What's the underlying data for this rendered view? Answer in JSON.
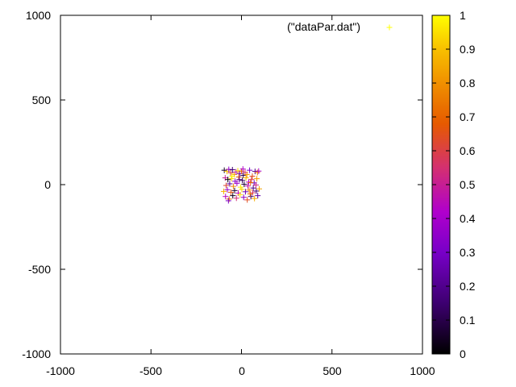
{
  "chart_data": {
    "type": "scatter",
    "title": "",
    "xlabel": "",
    "ylabel": "",
    "xlim": [
      -1000,
      1000
    ],
    "ylim": [
      -1000,
      1000
    ],
    "x_ticks": [
      -1000,
      -500,
      0,
      500,
      1000
    ],
    "y_ticks": [
      -1000,
      -500,
      0,
      500,
      1000
    ],
    "grid": false,
    "legend_position": "top-right",
    "marker": "plus",
    "series": [
      {
        "name": "(\"dataPar.dat\")",
        "points": [
          {
            "x": -95,
            "y": 85,
            "c": 0.05
          },
          {
            "x": -80,
            "y": 78,
            "c": 0.9
          },
          {
            "x": -70,
            "y": 90,
            "c": 0.35
          },
          {
            "x": -60,
            "y": 70,
            "c": 0.6
          },
          {
            "x": -50,
            "y": 88,
            "c": 0.15
          },
          {
            "x": -40,
            "y": 60,
            "c": 0.85
          },
          {
            "x": -30,
            "y": 75,
            "c": 0.45
          },
          {
            "x": -20,
            "y": 82,
            "c": 0.95
          },
          {
            "x": -10,
            "y": 65,
            "c": 0.25
          },
          {
            "x": 0,
            "y": 80,
            "c": 0.7
          },
          {
            "x": 10,
            "y": 55,
            "c": 0.1
          },
          {
            "x": 20,
            "y": 72,
            "c": 0.55
          },
          {
            "x": 30,
            "y": 60,
            "c": 0.8
          },
          {
            "x": 45,
            "y": 85,
            "c": 0.3
          },
          {
            "x": 60,
            "y": 50,
            "c": 0.65
          },
          {
            "x": 75,
            "y": 78,
            "c": 0.2
          },
          {
            "x": 88,
            "y": 72,
            "c": 0.75
          },
          {
            "x": 95,
            "y": 80,
            "c": 0.4
          },
          {
            "x": -90,
            "y": 40,
            "c": 0.5
          },
          {
            "x": -75,
            "y": 30,
            "c": 0.02
          },
          {
            "x": -55,
            "y": 35,
            "c": 0.92
          },
          {
            "x": -35,
            "y": 20,
            "c": 0.33
          },
          {
            "x": -15,
            "y": 45,
            "c": 0.68
          },
          {
            "x": 5,
            "y": 25,
            "c": 0.12
          },
          {
            "x": 25,
            "y": 40,
            "c": 0.88
          },
          {
            "x": 40,
            "y": 15,
            "c": 0.42
          },
          {
            "x": 55,
            "y": 30,
            "c": 0.58
          },
          {
            "x": 70,
            "y": 10,
            "c": 0.28
          },
          {
            "x": 85,
            "y": 35,
            "c": 0.82
          },
          {
            "x": -85,
            "y": -5,
            "c": 0.62
          },
          {
            "x": -65,
            "y": 5,
            "c": 0.22
          },
          {
            "x": -45,
            "y": -10,
            "c": 0.78
          },
          {
            "x": -25,
            "y": 8,
            "c": 0.38
          },
          {
            "x": -5,
            "y": -15,
            "c": 0.98
          },
          {
            "x": 15,
            "y": 2,
            "c": 0.08
          },
          {
            "x": 35,
            "y": -8,
            "c": 0.48
          },
          {
            "x": 50,
            "y": 12,
            "c": 0.72
          },
          {
            "x": 65,
            "y": -20,
            "c": 0.18
          },
          {
            "x": 80,
            "y": -2,
            "c": 0.52
          },
          {
            "x": -98,
            "y": -40,
            "c": 0.87
          },
          {
            "x": -78,
            "y": -30,
            "c": 0.37
          },
          {
            "x": -58,
            "y": -45,
            "c": 0.66
          },
          {
            "x": -38,
            "y": -35,
            "c": 0.06
          },
          {
            "x": -18,
            "y": -50,
            "c": 0.46
          },
          {
            "x": 2,
            "y": -28,
            "c": 0.93
          },
          {
            "x": 22,
            "y": -42,
            "c": 0.26
          },
          {
            "x": 42,
            "y": -32,
            "c": 0.76
          },
          {
            "x": 62,
            "y": -48,
            "c": 0.56
          },
          {
            "x": 82,
            "y": -38,
            "c": 0.16
          },
          {
            "x": 98,
            "y": -25,
            "c": 0.84
          },
          {
            "x": -88,
            "y": -70,
            "c": 0.44
          },
          {
            "x": -68,
            "y": -85,
            "c": 0.74
          },
          {
            "x": -48,
            "y": -65,
            "c": 0.04
          },
          {
            "x": -28,
            "y": -80,
            "c": 0.54
          },
          {
            "x": -8,
            "y": -60,
            "c": 0.96
          },
          {
            "x": 12,
            "y": -75,
            "c": 0.34
          },
          {
            "x": 32,
            "y": -90,
            "c": 0.64
          },
          {
            "x": 52,
            "y": -70,
            "c": 0.14
          },
          {
            "x": 72,
            "y": -82,
            "c": 0.86
          },
          {
            "x": 90,
            "y": -65,
            "c": 0.24
          },
          {
            "x": -72,
            "y": -95,
            "c": 0.31
          },
          {
            "x": -52,
            "y": 50,
            "c": 0.99
          },
          {
            "x": 8,
            "y": 92,
            "c": 0.41
          },
          {
            "x": 48,
            "y": -55,
            "c": 0.71
          },
          {
            "x": -12,
            "y": 30,
            "c": 0.19
          }
        ]
      }
    ],
    "colorbar": {
      "range": [
        0,
        1
      ],
      "ticks": [
        0,
        0.1,
        0.2,
        0.3,
        0.4,
        0.5,
        0.6,
        0.7,
        0.8,
        0.9,
        1
      ],
      "palette": [
        "#000000",
        "#3d0070",
        "#7800c8",
        "#b000cc",
        "#d43070",
        "#e65a00",
        "#f09000",
        "#f8c000",
        "#ffff00"
      ]
    },
    "legend_marker_color": "#ffff00"
  },
  "labels": {
    "x_ticks": [
      "-1000",
      "-500",
      "0",
      "500",
      "1000"
    ],
    "y_ticks": [
      "-1000",
      "-500",
      "0",
      "500",
      "1000"
    ],
    "colorbar_ticks": [
      "0",
      "0.1",
      "0.2",
      "0.3",
      "0.4",
      "0.5",
      "0.6",
      "0.7",
      "0.8",
      "0.9",
      "1"
    ],
    "legend": "(\"dataPar.dat\")"
  }
}
